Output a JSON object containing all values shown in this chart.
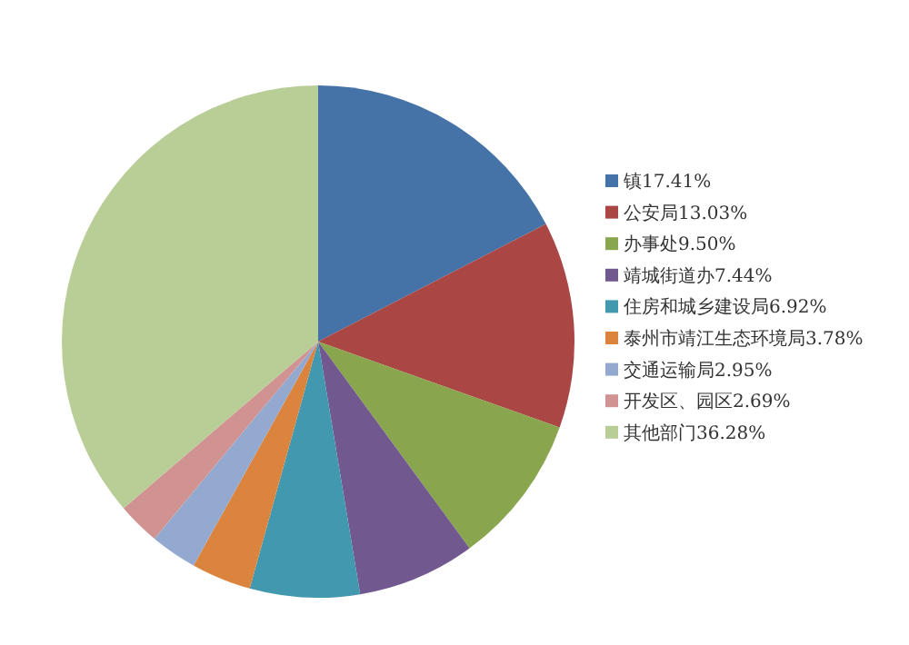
{
  "chart_data": {
    "type": "pie",
    "categories": [
      "镇",
      "公安局",
      "办事处",
      "靖城街道办",
      "住房和城乡建设局",
      "泰州市靖江生态环境局",
      "交通运输局",
      "开发区、园区",
      "其他部门"
    ],
    "values": [
      17.41,
      13.03,
      9.5,
      7.44,
      6.92,
      3.78,
      2.95,
      2.69,
      36.28
    ],
    "value_labels": [
      "17.41%",
      "13.03%",
      "9.50%",
      "7.44%",
      "6.92%",
      "3.78%",
      "2.95%",
      "2.69%",
      "36.28%"
    ],
    "colors": [
      "#4572a7",
      "#aa4643",
      "#89a54e",
      "#71588f",
      "#4198af",
      "#db843d",
      "#93a9cf",
      "#d19392",
      "#b9cd96"
    ],
    "legend": "right"
  }
}
